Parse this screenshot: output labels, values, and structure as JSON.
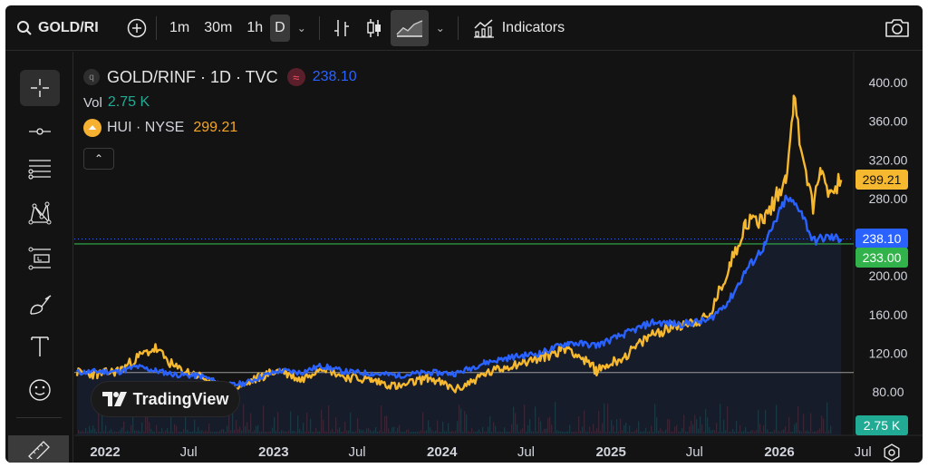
{
  "toolbar": {
    "symbol": "GOLD/RI",
    "intervals": [
      "1m",
      "30m",
      "1h",
      "D"
    ],
    "active_interval": "D",
    "indicators_label": "Indicators"
  },
  "legend": {
    "main_title": "GOLD/RINF · 1D · TVC",
    "main_value": "238.10",
    "badge_letter": "q",
    "vol_label": "Vol",
    "vol_value": "2.75 K",
    "compare_title": "HUI · NYSE",
    "compare_value": "299.21"
  },
  "logo_text": "TradingView",
  "price_tags": {
    "hui": "299.21",
    "main": "238.10",
    "green_line": "233.00",
    "volume": "2.75 K"
  },
  "colors": {
    "main_series": "#2962ff",
    "compare_series": "#f5b82e",
    "green_line": "#31b24a",
    "volume_tag": "#22ab94",
    "background": "#131313"
  },
  "chart_data": {
    "type": "line",
    "y_ticks": [
      "400.00",
      "360.00",
      "320.00",
      "280.00",
      "200.00",
      "160.00",
      "120.00",
      "80.00"
    ],
    "x_ticks": [
      "2022",
      "Jul",
      "2023",
      "Jul",
      "2024",
      "Jul",
      "2025",
      "Jul",
      "2026",
      "Jul"
    ],
    "ylim": [
      68,
      410
    ],
    "reference_lines": [
      100,
      233
    ],
    "series": [
      {
        "name": "GOLD/RINF · 1D · TVC",
        "points": [
          [
            "2021-11-01",
            100
          ],
          [
            "2021-12-15",
            101
          ],
          [
            "2022-02-01",
            101
          ],
          [
            "2022-03-10",
            106
          ],
          [
            "2022-04-20",
            102
          ],
          [
            "2022-06-01",
            98
          ],
          [
            "2022-08-01",
            96
          ],
          [
            "2022-09-10",
            88
          ],
          [
            "2022-10-01",
            87
          ],
          [
            "2022-11-01",
            89
          ],
          [
            "2022-12-01",
            95
          ],
          [
            "2023-01-15",
            102
          ],
          [
            "2023-03-01",
            100
          ],
          [
            "2023-04-15",
            107
          ],
          [
            "2023-06-01",
            101
          ],
          [
            "2023-08-01",
            99
          ],
          [
            "2023-10-01",
            97
          ],
          [
            "2023-12-01",
            100
          ],
          [
            "2024-02-01",
            99
          ],
          [
            "2024-04-01",
            110
          ],
          [
            "2024-06-01",
            116
          ],
          [
            "2024-08-01",
            120
          ],
          [
            "2024-10-01",
            131
          ],
          [
            "2024-12-01",
            128
          ],
          [
            "2025-02-01",
            140
          ],
          [
            "2025-04-01",
            152
          ],
          [
            "2025-06-01",
            150
          ],
          [
            "2025-08-01",
            154
          ],
          [
            "2025-09-15",
            175
          ],
          [
            "2025-10-20",
            205
          ],
          [
            "2025-12-01",
            232
          ],
          [
            "2026-01-15",
            280
          ],
          [
            "2026-02-15",
            270
          ],
          [
            "2026-03-15",
            236
          ],
          [
            "2026-04-15",
            240
          ],
          [
            "2026-05-15",
            238.1
          ]
        ]
      },
      {
        "name": "HUI · NYSE",
        "points": [
          [
            "2021-11-01",
            100
          ],
          [
            "2021-12-15",
            98
          ],
          [
            "2022-02-01",
            102
          ],
          [
            "2022-03-20",
            118
          ],
          [
            "2022-04-20",
            125
          ],
          [
            "2022-06-01",
            105
          ],
          [
            "2022-08-01",
            95
          ],
          [
            "2022-09-10",
            82
          ],
          [
            "2022-10-01",
            81
          ],
          [
            "2022-11-01",
            88
          ],
          [
            "2022-12-01",
            95
          ],
          [
            "2023-01-15",
            103
          ],
          [
            "2023-03-01",
            92
          ],
          [
            "2023-04-15",
            107
          ],
          [
            "2023-06-01",
            96
          ],
          [
            "2023-08-01",
            92
          ],
          [
            "2023-10-01",
            85
          ],
          [
            "2023-12-01",
            95
          ],
          [
            "2024-02-01",
            82
          ],
          [
            "2024-04-01",
            98
          ],
          [
            "2024-06-01",
            108
          ],
          [
            "2024-08-01",
            115
          ],
          [
            "2024-10-01",
            126
          ],
          [
            "2024-12-01",
            102
          ],
          [
            "2025-02-01",
            117
          ],
          [
            "2025-04-01",
            140
          ],
          [
            "2025-06-01",
            150
          ],
          [
            "2025-08-01",
            156
          ],
          [
            "2025-09-15",
            210
          ],
          [
            "2025-10-20",
            255
          ],
          [
            "2025-12-01",
            260
          ],
          [
            "2026-01-15",
            300
          ],
          [
            "2026-02-01",
            384
          ],
          [
            "2026-02-15",
            340
          ],
          [
            "2026-03-15",
            270
          ],
          [
            "2026-04-01",
            312
          ],
          [
            "2026-04-20",
            285
          ],
          [
            "2026-05-15",
            299.21
          ]
        ]
      }
    ],
    "grid": false
  }
}
